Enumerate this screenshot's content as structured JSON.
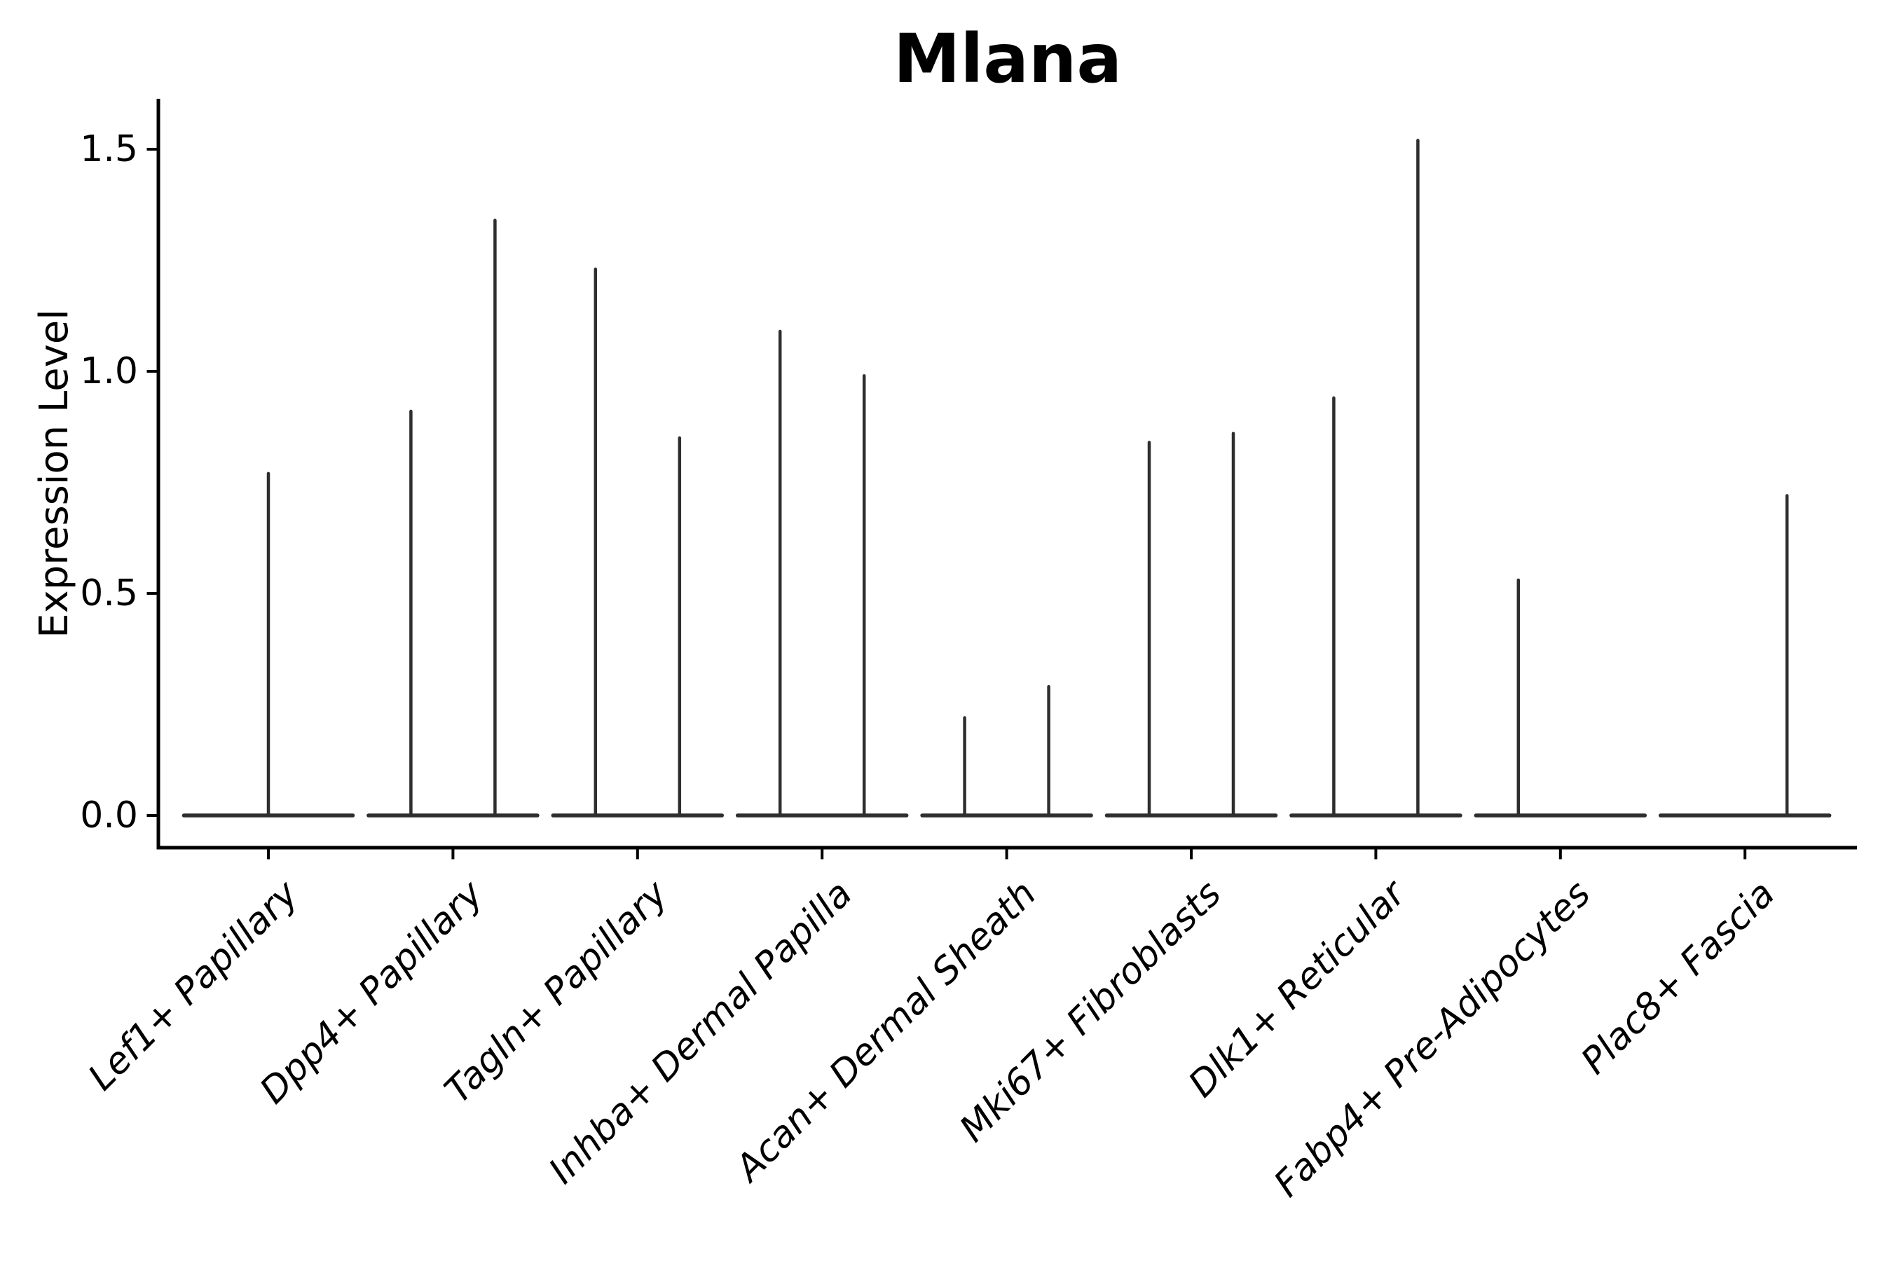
{
  "chart_data": {
    "type": "violin",
    "title": "Mlana",
    "ylabel": "Expression Level",
    "xlabel": "",
    "yticks": [
      0.0,
      0.5,
      1.0,
      1.5
    ],
    "ylim": [
      -0.07,
      1.61
    ],
    "grid": false,
    "legend": "none",
    "categories": [
      "Lef1+ Papillary",
      "Dpp4+ Papillary",
      "Tagln+ Papillary",
      "Inhba+ Dermal Papilla",
      "Acan+ Dermal Sheath",
      "Mki67+ Fibroblasts",
      "Dlk1+ Reticular",
      "Fabp4+ Pre-Adipocytes",
      "Plac8+ Fascia"
    ],
    "groups": [
      {
        "category": "Lef1+ Papillary",
        "violins": [
          {
            "position": "center",
            "max_expression": 0.77
          }
        ]
      },
      {
        "category": "Dpp4+ Papillary",
        "violins": [
          {
            "position": "left",
            "max_expression": 0.91
          },
          {
            "position": "right",
            "max_expression": 1.34
          }
        ]
      },
      {
        "category": "Tagln+ Papillary",
        "violins": [
          {
            "position": "left",
            "max_expression": 1.23
          },
          {
            "position": "right",
            "max_expression": 0.85
          }
        ]
      },
      {
        "category": "Inhba+ Dermal Papilla",
        "violins": [
          {
            "position": "left",
            "max_expression": 1.09
          },
          {
            "position": "right",
            "max_expression": 0.99
          }
        ]
      },
      {
        "category": "Acan+ Dermal Sheath",
        "violins": [
          {
            "position": "left",
            "max_expression": 0.22
          },
          {
            "position": "right",
            "max_expression": 0.29
          }
        ]
      },
      {
        "category": "Mki67+ Fibroblasts",
        "violins": [
          {
            "position": "left",
            "max_expression": 0.84
          },
          {
            "position": "right",
            "max_expression": 0.86
          }
        ]
      },
      {
        "category": "Dlk1+ Reticular",
        "violins": [
          {
            "position": "left",
            "max_expression": 0.94
          },
          {
            "position": "right",
            "max_expression": 1.52
          }
        ]
      },
      {
        "category": "Fabp4+ Pre-Adipocytes",
        "violins": [
          {
            "position": "left",
            "max_expression": 0.53
          },
          {
            "position": "right",
            "max_expression": 0.0
          }
        ]
      },
      {
        "category": "Plac8+ Fascia",
        "violins": [
          {
            "position": "left",
            "max_expression": 0.0
          },
          {
            "position": "right",
            "max_expression": 0.72
          }
        ]
      }
    ],
    "colors": {
      "violin_stroke": "#2e2e2e",
      "axis": "#000000",
      "background": "#ffffff"
    }
  }
}
